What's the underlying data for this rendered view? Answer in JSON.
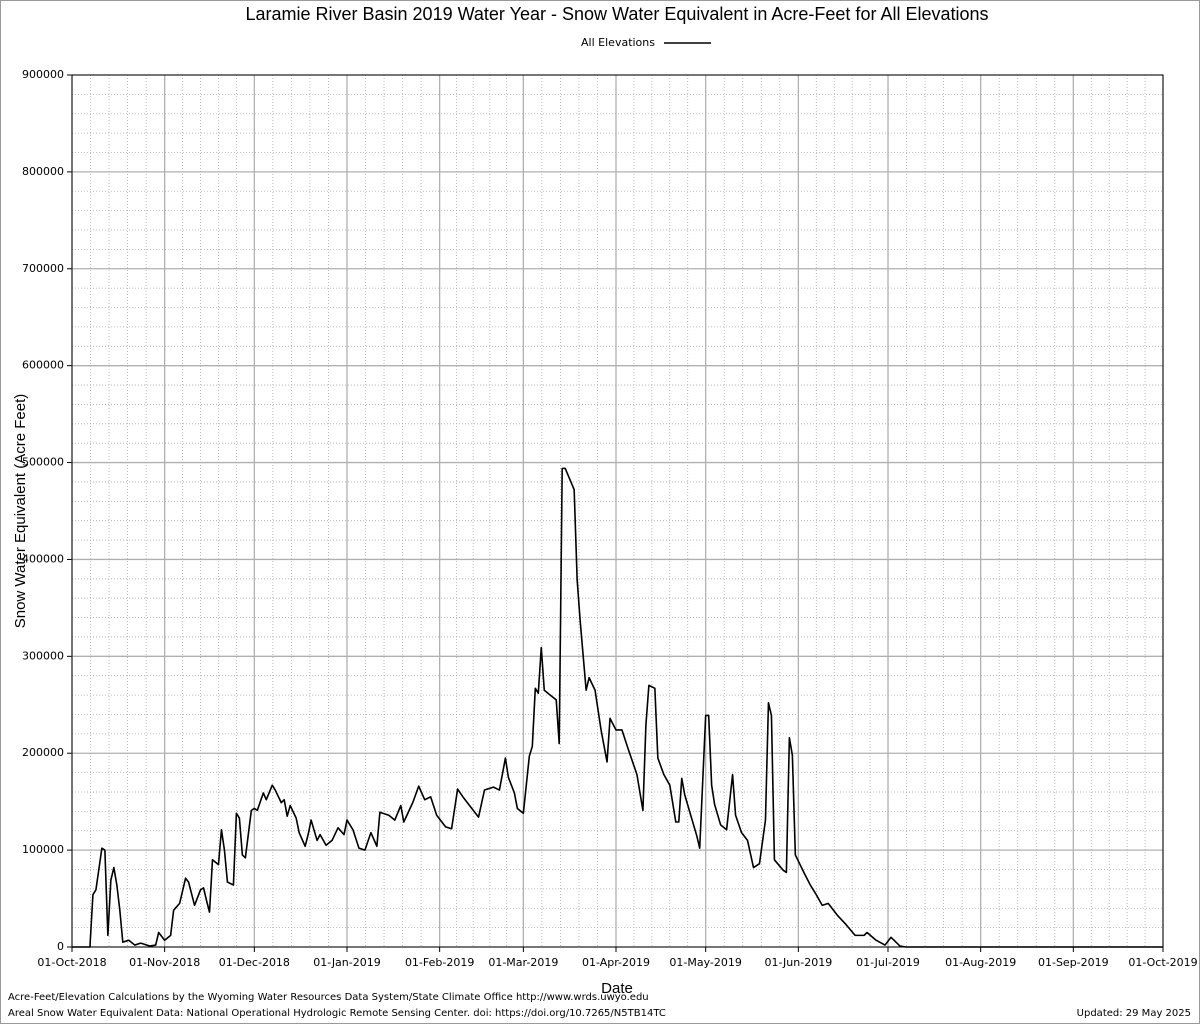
{
  "chart_data": {
    "type": "line",
    "title": "Laramie River Basin 2019 Water Year - Snow Water Equivalent in Acre-Feet for All Elevations",
    "x_label": "Date",
    "y_label": "Snow Water Equivalent (Acre Feet)",
    "footnotes": [
      "Acre-Feet/Elevation Calculations by the Wyoming Water Resources Data System/State Climate Office http://www.wrds.uwyo.edu",
      "Areal Snow Water Equivalent Data: National Operational Hydrologic Remote Sensing Center. doi: https://doi.org/10.7265/N5TB14TC"
    ],
    "updated": "Updated: 29 May 2025",
    "grid": true,
    "legend": "top",
    "xlim": [
      "2018-10-01",
      "2019-10-01"
    ],
    "xticks": [
      {
        "value": "2018-10-01",
        "label": "01-Oct-2018"
      },
      {
        "value": "2018-11-01",
        "label": "01-Nov-2018"
      },
      {
        "value": "2018-12-01",
        "label": "01-Dec-2018"
      },
      {
        "value": "2019-01-01",
        "label": "01-Jan-2019"
      },
      {
        "value": "2019-02-01",
        "label": "01-Feb-2019"
      },
      {
        "value": "2019-03-01",
        "label": "01-Mar-2019"
      },
      {
        "value": "2019-04-01",
        "label": "01-Apr-2019"
      },
      {
        "value": "2019-05-01",
        "label": "01-May-2019"
      },
      {
        "value": "2019-06-01",
        "label": "01-Jun-2019"
      },
      {
        "value": "2019-07-01",
        "label": "01-Jul-2019"
      },
      {
        "value": "2019-08-01",
        "label": "01-Aug-2019"
      },
      {
        "value": "2019-09-01",
        "label": "01-Sep-2019"
      },
      {
        "value": "2019-10-01",
        "label": "01-Oct-2019"
      }
    ],
    "ylim": [
      0,
      900000
    ],
    "yticks": [
      0,
      100000,
      200000,
      300000,
      400000,
      500000,
      600000,
      700000,
      800000,
      900000
    ],
    "x": [
      "2018-10-01",
      "2018-10-07",
      "2018-10-08",
      "2018-10-09",
      "2018-10-11",
      "2018-10-12",
      "2018-10-13",
      "2018-10-14",
      "2018-10-15",
      "2018-10-16",
      "2018-10-17",
      "2018-10-18",
      "2018-10-20",
      "2018-10-22",
      "2018-10-24",
      "2018-10-27",
      "2018-10-29",
      "2018-10-30",
      "2018-11-01",
      "2018-11-03",
      "2018-11-04",
      "2018-11-06",
      "2018-11-08",
      "2018-11-09",
      "2018-11-11",
      "2018-11-13",
      "2018-11-14",
      "2018-11-15",
      "2018-11-16",
      "2018-11-17",
      "2018-11-19",
      "2018-11-20",
      "2018-11-21",
      "2018-11-22",
      "2018-11-24",
      "2018-11-25",
      "2018-11-26",
      "2018-11-27",
      "2018-11-28",
      "2018-11-30",
      "2018-12-01",
      "2018-12-02",
      "2018-12-04",
      "2018-12-05",
      "2018-12-07",
      "2018-12-08",
      "2018-12-10",
      "2018-12-11",
      "2018-12-12",
      "2018-12-13",
      "2018-12-15",
      "2018-12-16",
      "2018-12-18",
      "2018-12-19",
      "2018-12-20",
      "2018-12-22",
      "2018-12-23",
      "2018-12-25",
      "2018-12-27",
      "2018-12-29",
      "2018-12-31",
      "2019-01-01",
      "2019-01-03",
      "2019-01-05",
      "2019-01-07",
      "2019-01-09",
      "2019-01-11",
      "2019-01-12",
      "2019-01-15",
      "2019-01-17",
      "2019-01-19",
      "2019-01-20",
      "2019-01-23",
      "2019-01-25",
      "2019-01-27",
      "2019-01-29",
      "2019-01-31",
      "2019-02-03",
      "2019-02-05",
      "2019-02-07",
      "2019-02-09",
      "2019-02-11",
      "2019-02-14",
      "2019-02-16",
      "2019-02-19",
      "2019-02-21",
      "2019-02-23",
      "2019-02-24",
      "2019-02-26",
      "2019-02-27",
      "2019-03-01",
      "2019-03-03",
      "2019-03-04",
      "2019-03-05",
      "2019-03-06",
      "2019-03-07",
      "2019-03-08",
      "2019-03-10",
      "2019-03-12",
      "2019-03-13",
      "2019-03-14",
      "2019-03-15",
      "2019-03-18",
      "2019-03-19",
      "2019-03-20",
      "2019-03-22",
      "2019-03-23",
      "2019-03-25",
      "2019-03-27",
      "2019-03-29",
      "2019-03-30",
      "2019-04-01",
      "2019-04-03",
      "2019-04-05",
      "2019-04-08",
      "2019-04-10",
      "2019-04-11",
      "2019-04-12",
      "2019-04-14",
      "2019-04-15",
      "2019-04-17",
      "2019-04-19",
      "2019-04-21",
      "2019-04-22",
      "2019-04-23",
      "2019-04-24",
      "2019-04-26",
      "2019-04-28",
      "2019-04-29",
      "2019-05-01",
      "2019-05-02",
      "2019-05-03",
      "2019-05-04",
      "2019-05-06",
      "2019-05-08",
      "2019-05-10",
      "2019-05-11",
      "2019-05-13",
      "2019-05-15",
      "2019-05-17",
      "2019-05-19",
      "2019-05-21",
      "2019-05-22",
      "2019-05-23",
      "2019-05-24",
      "2019-05-27",
      "2019-05-28",
      "2019-05-29",
      "2019-05-30",
      "2019-05-31",
      "2019-06-03",
      "2019-06-05",
      "2019-06-07",
      "2019-06-09",
      "2019-06-11",
      "2019-06-14",
      "2019-06-17",
      "2019-06-20",
      "2019-06-23",
      "2019-06-24",
      "2019-06-27",
      "2019-06-30",
      "2019-07-02",
      "2019-07-03",
      "2019-07-05",
      "2019-07-07",
      "2019-10-01"
    ],
    "series": [
      {
        "name": "All Elevations",
        "color": "#000000",
        "values": [
          0,
          0,
          54000,
          59000,
          102000,
          100000,
          12000,
          69000,
          82000,
          64000,
          38000,
          5000,
          7000,
          2000,
          4000,
          1000,
          2000,
          15000,
          7000,
          12000,
          38000,
          45000,
          71000,
          67000,
          43000,
          59000,
          61000,
          48000,
          36000,
          90000,
          85000,
          121000,
          100000,
          67000,
          64000,
          138000,
          133000,
          95000,
          92000,
          141000,
          143000,
          141000,
          159000,
          152000,
          167000,
          162000,
          149000,
          152000,
          135000,
          146000,
          133000,
          118000,
          104000,
          116000,
          131000,
          110000,
          116000,
          105000,
          110000,
          123000,
          116000,
          131000,
          121000,
          102000,
          100000,
          118000,
          104000,
          139000,
          136000,
          131000,
          146000,
          129000,
          149000,
          166000,
          152000,
          155000,
          136000,
          124000,
          122000,
          163000,
          154000,
          146000,
          134000,
          162000,
          165000,
          162000,
          195000,
          175000,
          159000,
          143000,
          138000,
          197000,
          207000,
          267000,
          262000,
          309000,
          265000,
          260000,
          255000,
          210000,
          494000,
          494000,
          472000,
          379000,
          337000,
          265000,
          278000,
          265000,
          224000,
          191000,
          236000,
          224000,
          224000,
          205000,
          178000,
          141000,
          229000,
          270000,
          267000,
          195000,
          178000,
          167000,
          129000,
          129000,
          174000,
          157000,
          136000,
          115000,
          102000,
          239000,
          239000,
          167000,
          147000,
          126000,
          121000,
          178000,
          136000,
          118000,
          110000,
          82000,
          86000,
          131000,
          252000,
          239000,
          90000,
          79000,
          77000,
          216000,
          198000,
          95000,
          76000,
          64000,
          54000,
          43000,
          45000,
          33000,
          23000,
          12000,
          12000,
          15000,
          7000,
          2000,
          10000,
          7000,
          1000,
          0,
          0
        ]
      }
    ]
  }
}
